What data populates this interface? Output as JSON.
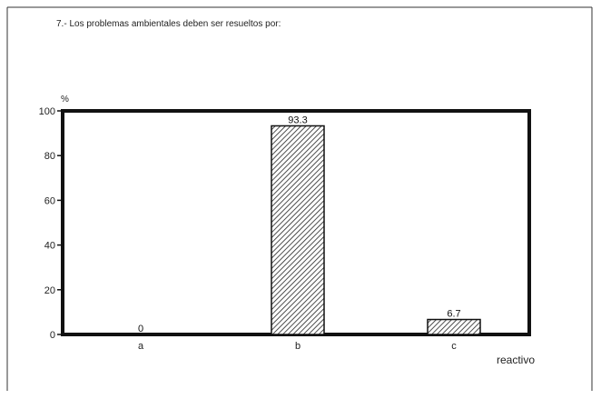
{
  "question": "7.- Los problemas ambientales deben ser resueltos por:",
  "y_unit": "%",
  "chart_data": {
    "type": "bar",
    "title": "7.- Los problemas ambientales deben ser resueltos por:",
    "xlabel": "reactivo",
    "ylabel": "%",
    "categories": [
      "a",
      "b",
      "c"
    ],
    "values": [
      0,
      93.3,
      6.7
    ],
    "data_labels": [
      "0",
      "93.3",
      "6.7"
    ],
    "ylim": [
      0,
      100
    ],
    "yticks": [
      "0",
      "20",
      "40",
      "60",
      "80",
      "100"
    ],
    "grid": false,
    "legend": "none",
    "bar_fill": "diagonal-hatch"
  }
}
